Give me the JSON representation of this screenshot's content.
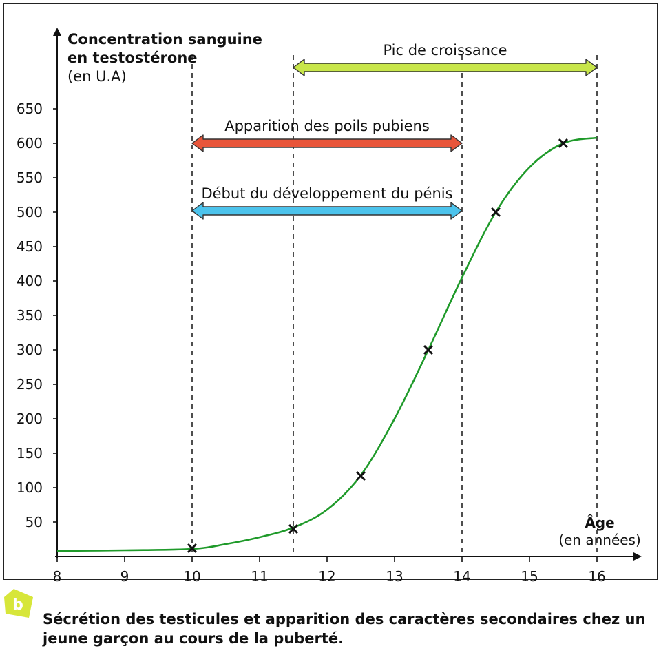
{
  "chart_data": {
    "type": "line",
    "ylabel_lines": [
      "Concentration sanguine",
      "en testostérone",
      "(en U.A)"
    ],
    "xlabel_lines": [
      "Âge",
      "(en années)"
    ],
    "x_ticks": [
      8,
      9,
      10,
      11,
      12,
      13,
      14,
      15,
      16
    ],
    "y_ticks": [
      50,
      100,
      150,
      200,
      250,
      300,
      350,
      400,
      450,
      500,
      550,
      600,
      650
    ],
    "xlim": [
      8,
      16.6
    ],
    "ylim": [
      0,
      650
    ],
    "grid": false,
    "curve": [
      {
        "x": 8,
        "y": 8
      },
      {
        "x": 9,
        "y": 9
      },
      {
        "x": 10,
        "y": 11
      },
      {
        "x": 10.5,
        "y": 18
      },
      {
        "x": 11,
        "y": 28
      },
      {
        "x": 11.5,
        "y": 42
      },
      {
        "x": 12,
        "y": 68
      },
      {
        "x": 12.5,
        "y": 118
      },
      {
        "x": 13,
        "y": 200
      },
      {
        "x": 13.5,
        "y": 300
      },
      {
        "x": 14,
        "y": 405
      },
      {
        "x": 14.5,
        "y": 500
      },
      {
        "x": 15,
        "y": 565
      },
      {
        "x": 15.5,
        "y": 600
      },
      {
        "x": 16,
        "y": 608
      }
    ],
    "markers": [
      {
        "x": 10,
        "y": 12
      },
      {
        "x": 11.5,
        "y": 40
      },
      {
        "x": 12.5,
        "y": 117
      },
      {
        "x": 13.5,
        "y": 300
      },
      {
        "x": 14.5,
        "y": 500
      },
      {
        "x": 15.5,
        "y": 600
      }
    ],
    "vertical_lines": [
      10,
      11.5,
      14,
      16
    ],
    "ranges": [
      {
        "label": "Pic de croissance",
        "from": 11.5,
        "to": 16,
        "color": "#c8e64a",
        "y": 710
      },
      {
        "label": "Apparition des poils pubiens",
        "from": 10,
        "to": 14,
        "color": "#e8553a",
        "y": 600
      },
      {
        "label": "Début du développement du pénis",
        "from": 10,
        "to": 14,
        "color": "#4cc3ec",
        "y": 502
      }
    ],
    "colors": {
      "curve": "#1f9a2a",
      "axis": "#111111"
    }
  },
  "caption": "Sécrétion des testicules et apparition des caractères secondaires chez un jeune garçon au cours de la puberté.",
  "badge_label": "b"
}
